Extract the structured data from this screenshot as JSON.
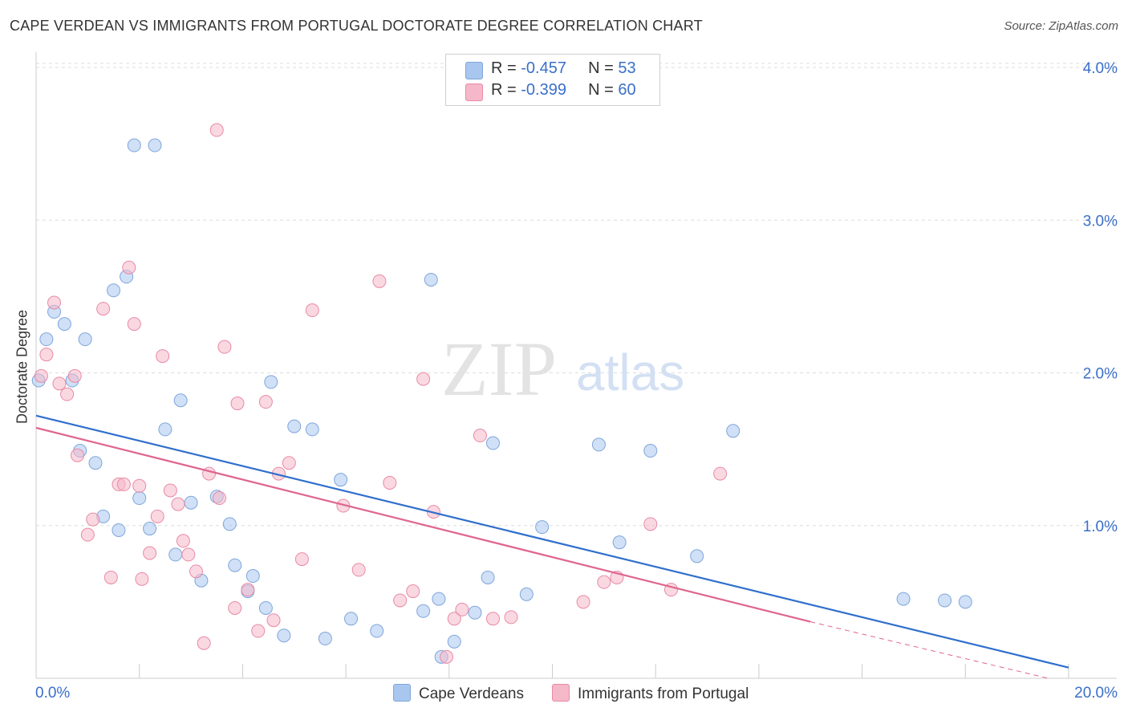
{
  "header": {
    "title": "CAPE VERDEAN VS IMMIGRANTS FROM PORTUGAL DOCTORATE DEGREE CORRELATION CHART",
    "source": "Source: ZipAtlas.com"
  },
  "watermark": {
    "zip": "ZIP",
    "atlas": "atlas"
  },
  "legend": [
    {
      "r_label": "R = ",
      "r_value": "-0.457",
      "n_label": "N = ",
      "n_value": "53",
      "color": "#a9c6ee"
    },
    {
      "r_label": "R = ",
      "r_value": "-0.399",
      "n_label": "N = ",
      "n_value": "60",
      "color": "#f5b8c9"
    }
  ],
  "chart_data": {
    "type": "scatter",
    "title": "CAPE VERDEAN VS IMMIGRANTS FROM PORTUGAL DOCTORATE DEGREE CORRELATION CHART",
    "xlabel": "",
    "ylabel": "Doctorate Degree",
    "xlim": [
      0,
      20
    ],
    "ylim": [
      0,
      4.1
    ],
    "x_tick_labels": [
      "0.0%",
      "20.0%"
    ],
    "y_tick_labels": [
      "1.0%",
      "2.0%",
      "3.0%",
      "4.0%"
    ],
    "y_ticks": [
      1,
      2,
      3,
      4
    ],
    "grid": "horizontal dashed",
    "legend_position": "top-center",
    "series": [
      {
        "name": "Cape Verdeans",
        "color": "#a9c6ee",
        "stroke": "#7ea6dc",
        "trend_color": "#2f6fcc",
        "trend": {
          "x0": 0,
          "y0": 1.72,
          "x1": 20,
          "y1": 0.07
        },
        "points": [
          [
            0.05,
            1.95
          ],
          [
            0.2,
            2.22
          ],
          [
            0.35,
            2.4
          ],
          [
            0.55,
            2.32
          ],
          [
            0.7,
            1.95
          ],
          [
            0.85,
            1.49
          ],
          [
            0.95,
            2.22
          ],
          [
            1.15,
            1.41
          ],
          [
            1.3,
            1.06
          ],
          [
            1.5,
            2.54
          ],
          [
            1.6,
            0.97
          ],
          [
            1.75,
            2.63
          ],
          [
            1.9,
            3.49
          ],
          [
            2.0,
            1.18
          ],
          [
            2.3,
            3.49
          ],
          [
            2.2,
            0.98
          ],
          [
            2.5,
            1.63
          ],
          [
            2.7,
            0.81
          ],
          [
            2.8,
            1.82
          ],
          [
            3.0,
            1.15
          ],
          [
            3.2,
            0.64
          ],
          [
            3.5,
            1.19
          ],
          [
            3.75,
            1.01
          ],
          [
            3.85,
            0.74
          ],
          [
            4.1,
            0.57
          ],
          [
            4.2,
            0.67
          ],
          [
            4.45,
            0.46
          ],
          [
            4.55,
            1.94
          ],
          [
            4.8,
            0.28
          ],
          [
            5.0,
            1.65
          ],
          [
            5.35,
            1.63
          ],
          [
            5.6,
            0.26
          ],
          [
            5.9,
            1.3
          ],
          [
            6.1,
            0.39
          ],
          [
            6.6,
            0.31
          ],
          [
            7.5,
            0.44
          ],
          [
            7.65,
            2.61
          ],
          [
            7.8,
            0.52
          ],
          [
            7.85,
            0.14
          ],
          [
            8.1,
            0.24
          ],
          [
            8.5,
            0.43
          ],
          [
            8.75,
            0.66
          ],
          [
            8.85,
            1.54
          ],
          [
            9.5,
            0.55
          ],
          [
            9.8,
            0.99
          ],
          [
            10.9,
            1.53
          ],
          [
            11.3,
            0.89
          ],
          [
            11.9,
            1.49
          ],
          [
            12.8,
            0.8
          ],
          [
            13.5,
            1.62
          ],
          [
            16.8,
            0.52
          ],
          [
            17.6,
            0.51
          ],
          [
            18.0,
            0.5
          ]
        ]
      },
      {
        "name": "Immigrants from Portugal",
        "color": "#f5b8c9",
        "stroke": "#e88aa6",
        "trend_color": "#e0658e",
        "trend": {
          "x0": 0,
          "y0": 1.64,
          "x1": 15.0,
          "y1": 0.37
        },
        "trend_dashed": {
          "x0": 15.0,
          "y0": 0.37,
          "x1": 19.6,
          "y1": 0.0
        },
        "points": [
          [
            0.1,
            1.98
          ],
          [
            0.2,
            2.12
          ],
          [
            0.35,
            2.46
          ],
          [
            0.45,
            1.93
          ],
          [
            0.6,
            1.86
          ],
          [
            0.75,
            1.98
          ],
          [
            0.8,
            1.46
          ],
          [
            1.0,
            0.94
          ],
          [
            1.1,
            1.04
          ],
          [
            1.3,
            2.42
          ],
          [
            1.45,
            0.66
          ],
          [
            1.6,
            1.27
          ],
          [
            1.7,
            1.27
          ],
          [
            1.8,
            2.69
          ],
          [
            1.9,
            2.32
          ],
          [
            2.0,
            1.26
          ],
          [
            2.05,
            0.65
          ],
          [
            2.2,
            0.82
          ],
          [
            2.35,
            1.06
          ],
          [
            2.45,
            2.11
          ],
          [
            2.6,
            1.23
          ],
          [
            2.75,
            1.14
          ],
          [
            2.85,
            0.9
          ],
          [
            2.95,
            0.81
          ],
          [
            3.1,
            0.7
          ],
          [
            3.25,
            0.23
          ],
          [
            3.35,
            1.34
          ],
          [
            3.5,
            3.59
          ],
          [
            3.55,
            1.18
          ],
          [
            3.65,
            2.17
          ],
          [
            3.85,
            0.46
          ],
          [
            3.9,
            1.8
          ],
          [
            4.1,
            0.58
          ],
          [
            4.3,
            0.31
          ],
          [
            4.45,
            1.81
          ],
          [
            4.6,
            0.38
          ],
          [
            4.7,
            1.34
          ],
          [
            4.9,
            1.41
          ],
          [
            5.15,
            0.78
          ],
          [
            5.35,
            2.41
          ],
          [
            5.95,
            1.13
          ],
          [
            6.25,
            0.71
          ],
          [
            6.65,
            2.6
          ],
          [
            6.85,
            1.28
          ],
          [
            7.05,
            0.51
          ],
          [
            7.3,
            0.57
          ],
          [
            7.5,
            1.96
          ],
          [
            7.7,
            1.09
          ],
          [
            7.95,
            0.14
          ],
          [
            8.1,
            0.39
          ],
          [
            8.25,
            0.45
          ],
          [
            8.6,
            1.59
          ],
          [
            8.85,
            0.39
          ],
          [
            9.2,
            0.4
          ],
          [
            10.6,
            0.5
          ],
          [
            11.0,
            0.63
          ],
          [
            11.25,
            0.66
          ],
          [
            11.9,
            1.01
          ],
          [
            12.3,
            0.58
          ],
          [
            13.25,
            1.34
          ]
        ]
      }
    ]
  },
  "bottom_legend": [
    "Cape Verdeans",
    "Immigrants from Portugal"
  ]
}
